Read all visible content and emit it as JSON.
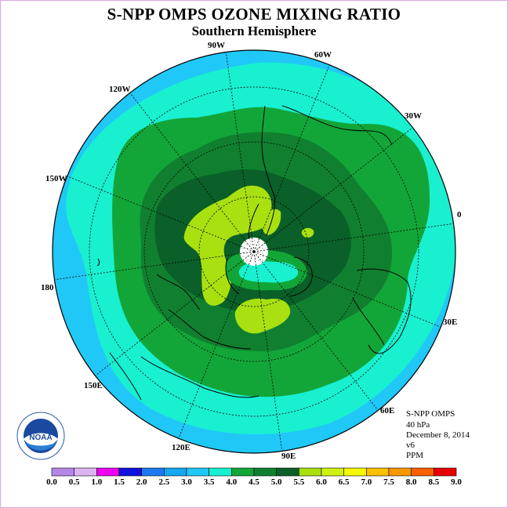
{
  "title": "S-NPP OMPS OZONE MIXING RATIO",
  "subtitle": "Southern Hemisphere",
  "longitude_labels": {
    "w90": "90W",
    "w60": "60W",
    "w30": "30W",
    "e0": "0",
    "e30": "30E",
    "e60": "60E",
    "e90": "90E",
    "e120": "120E",
    "e150": "150E",
    "l180": "180",
    "w150": "150W",
    "w120": "120W"
  },
  "info": {
    "instrument": "S-NPP OMPS",
    "level": "40 hPa",
    "date": "December 8, 2014",
    "version": "v6",
    "units": "PPM"
  },
  "logo": {
    "text": "NOAA",
    "icon": "noaa-logo-icon"
  },
  "colorbar": {
    "ticks": [
      "0.0",
      "0.5",
      "1.0",
      "1.5",
      "2.0",
      "2.5",
      "3.0",
      "3.5",
      "4.0",
      "4.5",
      "5.0",
      "5.5",
      "6.0",
      "6.5",
      "7.0",
      "7.5",
      "8.0",
      "8.5",
      "9.0"
    ],
    "colors": [
      "#b486e8",
      "#dcb4f0",
      "#f000f0",
      "#1010e0",
      "#1e78f0",
      "#14a8f0",
      "#20c8f8",
      "#18f0d0",
      "#12a638",
      "#108030",
      "#0a6028",
      "#a8e010",
      "#d0f010",
      "#f8f800",
      "#f8c000",
      "#f89800",
      "#f86000",
      "#e80000",
      "#8a5a3a"
    ]
  },
  "map_colors": {
    "c3_0": "#20c8f8",
    "c3_5": "#18f0d0",
    "c4_0": "#12a638",
    "c4_5": "#108030",
    "c5_0": "#0a6028",
    "c5_5": "#a8e010",
    "missing": "#ffffff"
  }
}
